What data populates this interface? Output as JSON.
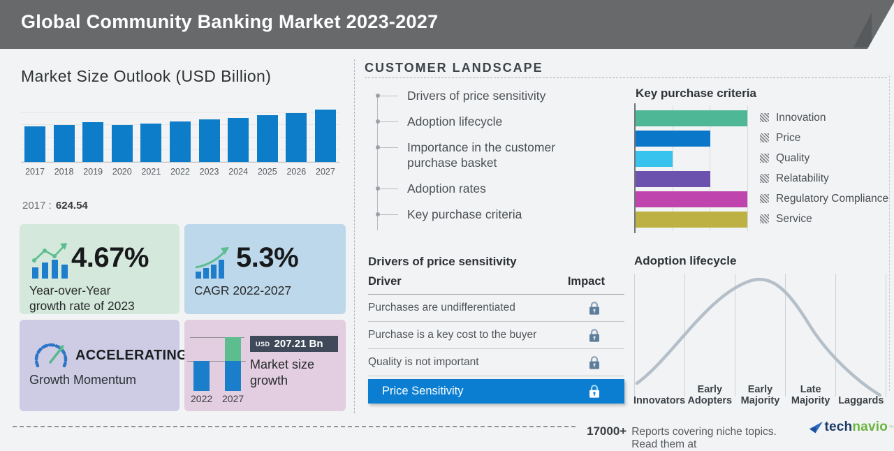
{
  "header": {
    "title": "Global Community Banking Market 2023-2027"
  },
  "market_outlook": {
    "title": "Market Size Outlook (USD Billion)",
    "base_year": "2017",
    "separator": ":",
    "base_value": "624.54"
  },
  "stat_boxes": {
    "yoy_value": "4.67%",
    "yoy_label_line1": "Year-over-Year",
    "yoy_label_line2": "growth rate of 2023",
    "cagr_value": "5.3%",
    "cagr_label": "CAGR 2022-2027",
    "momentum_value": "ACCELERATING",
    "momentum_label": "Growth Momentum",
    "growth_currency": "USD",
    "growth_amount": "207.21 Bn",
    "growth_label_line1": "Market size",
    "growth_label_line2": "growth",
    "growth_year_start": "2022",
    "growth_year_end": "2027"
  },
  "customer_landscape": {
    "heading": "CUSTOMER LANDSCAPE",
    "items": [
      "Drivers of price sensitivity",
      "Adoption lifecycle",
      "Importance in the customer purchase basket",
      "Adoption rates",
      "Key purchase criteria"
    ]
  },
  "price_sensitivity": {
    "heading": "Drivers of price sensitivity",
    "col_driver": "Driver",
    "col_impact": "Impact",
    "rows": [
      "Purchases are undifferentiated",
      "Purchase is a key cost to the buyer",
      "Quality is not important"
    ],
    "highlight_row": "Price Sensitivity",
    "highlight_color": "#0b7ed2",
    "impact_icon": "lock-icon"
  },
  "purchase_criteria": {
    "heading": "Key purchase criteria"
  },
  "adoption_lifecycle": {
    "heading": "Adoption lifecycle",
    "segments": [
      "Innovators",
      "Early Adopters",
      "Early Majority",
      "Late Majority",
      "Laggards"
    ]
  },
  "footer": {
    "count": "17000+",
    "text": "Reports covering niche topics. Read them at",
    "brand_prefix": "tech",
    "brand_suffix": "navio",
    "brand_mark": "™"
  },
  "icons": {
    "yoy": "bar-chart-trend-icon",
    "cagr": "growth-bars-arrow-icon",
    "momentum": "speedometer-icon",
    "impact": "lock-icon",
    "legend_swatch": "hatched-swatch-icon",
    "brand": "technavio-plane-icon"
  },
  "colors": {
    "header_bg": "#67696b",
    "market_bar": "#0d7cc9",
    "highlight_row": "#0b7ed2",
    "box_yoy": "#d5e8dc",
    "box_cagr": "#bed8eb",
    "box_momentum": "#cdcce4",
    "box_growth": "#e3cde1",
    "badge_bg": "#3f4959",
    "brand_blue": "#1c3a66",
    "brand_green": "#6ab440"
  },
  "chart_data": [
    {
      "type": "bar",
      "title": "Market Size Outlook (USD Billion)",
      "categories": [
        "2017",
        "2018",
        "2019",
        "2020",
        "2021",
        "2022",
        "2023",
        "2024",
        "2025",
        "2026",
        "2027"
      ],
      "values": [
        624.54,
        655,
        695,
        650,
        680,
        712,
        745,
        775,
        825,
        865,
        919.21
      ],
      "ylabel": "USD Billion",
      "ylim": [
        0,
        1000
      ],
      "grid": "horizontal",
      "bar_color": "#0d7cc9",
      "note": "2017 labeled 624.54; other values estimated from bar heights"
    },
    {
      "type": "bar",
      "title": "Market size growth",
      "categories": [
        "2022",
        "2027"
      ],
      "values": [
        712,
        919.21
      ],
      "growth_label": "USD 207.21 Bn",
      "note": "2027 bar shows growth segment stacked in green"
    },
    {
      "type": "bar",
      "orientation": "horizontal",
      "title": "Key purchase criteria",
      "categories": [
        "Innovation",
        "Price",
        "Quality",
        "Relatability",
        "Regulatory Compliance",
        "Service"
      ],
      "values": [
        3,
        2,
        1,
        2,
        3,
        3
      ],
      "xlim": [
        0,
        3
      ],
      "grid": "vertical",
      "legend_position": "right",
      "colors": [
        "#4eb795",
        "#0b77c8",
        "#38c3ee",
        "#6a52ae",
        "#bf44ad",
        "#bcb142"
      ],
      "note": "relative lengths estimated from gridlines"
    },
    {
      "type": "line",
      "title": "Adoption lifecycle",
      "categories": [
        "Innovators",
        "Early Adopters",
        "Early Majority",
        "Late Majority",
        "Laggards"
      ],
      "shape": "bell curve rising from Innovators, peaking in Early Majority, falling to Laggards",
      "line_color": "#b5bfc9",
      "grid": "vertical"
    }
  ]
}
